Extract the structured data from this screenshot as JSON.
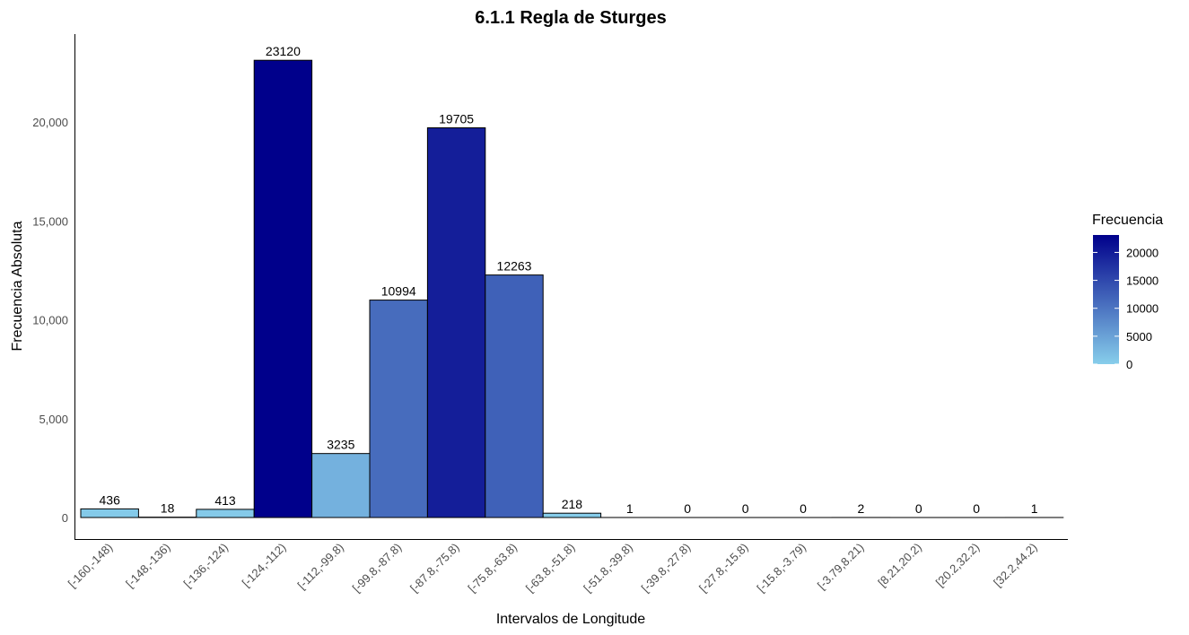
{
  "chart_data": {
    "type": "bar",
    "title": "6.1.1 Regla de Sturges",
    "xlabel": "Intervalos de Longitude",
    "ylabel": "Frecuencia Absoluta",
    "categories": [
      "[-160,-148)",
      "[-148,-136)",
      "[-136,-124)",
      "[-124,-112)",
      "[-112,-99.8)",
      "[-99.8,-87.8)",
      "[-87.8,-75.8)",
      "[-75.8,-63.8)",
      "[-63.8,-51.8)",
      "[-51.8,-39.8)",
      "[-39.8,-27.8)",
      "[-27.8,-15.8)",
      "[-15.8,-3.79)",
      "[-3.79,8.21)",
      "[8.21,20.2)",
      "[20.2,32.2)",
      "[32.2,44.2)"
    ],
    "values": [
      436,
      18,
      413,
      23120,
      3235,
      10994,
      19705,
      12263,
      218,
      1,
      0,
      0,
      0,
      2,
      0,
      0,
      1
    ],
    "ylim": [
      0,
      24000
    ],
    "yticks": [
      0,
      5000,
      10000,
      15000,
      20000
    ],
    "ytick_labels": [
      "0",
      "5,000",
      "10,000",
      "15,000",
      "20,000"
    ],
    "grid": false,
    "legend": {
      "title": "Frecuencia",
      "position": "right",
      "ticks": [
        0,
        5000,
        10000,
        15000,
        20000
      ],
      "tick_labels": [
        "0",
        "5000",
        "10000",
        "15000",
        "20000"
      ],
      "min": 0,
      "max": 23120,
      "color_low": "#87ceeb",
      "color_high": "#00008b"
    }
  }
}
